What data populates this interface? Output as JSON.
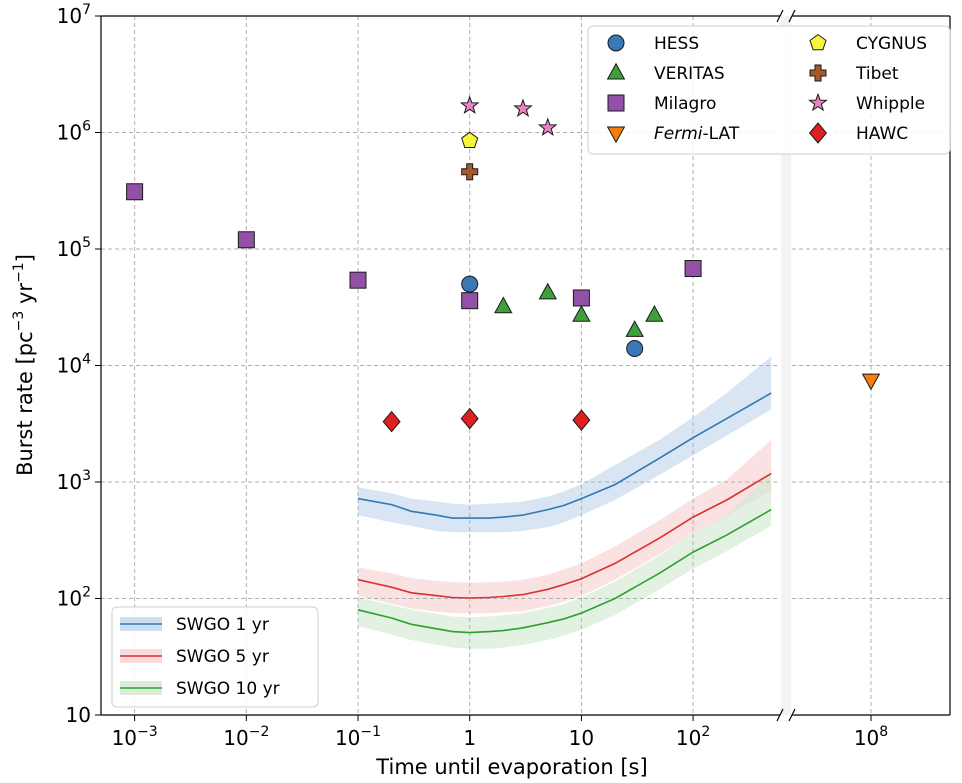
{
  "chart_data": {
    "type": "scatter",
    "title": "",
    "xlabel": "Time until evaporation [s]",
    "ylabel": "Burst rate [pc⁻³ yr⁻¹]",
    "ylim": [
      10,
      10000000
    ],
    "y_scale": "log",
    "x_scale": "log",
    "x_break": "axis break between 10^2.5 s and 10^8 s",
    "xlim_left": [
      0.0005,
      600
    ],
    "xlim_right": [
      1000000,
      10000000000
    ],
    "x_ticks": [
      {
        "value": 0.001,
        "base": "10",
        "exp": "−3"
      },
      {
        "value": 0.01,
        "base": "10",
        "exp": "−2"
      },
      {
        "value": 0.1,
        "base": "10",
        "exp": "−1"
      },
      {
        "value": 1,
        "base": "1",
        "exp": ""
      },
      {
        "value": 10,
        "base": "10",
        "exp": ""
      },
      {
        "value": 100,
        "base": "10",
        "exp": "2"
      },
      {
        "value": 100000000,
        "base": "10",
        "exp": "8"
      }
    ],
    "y_ticks": [
      {
        "value": 10,
        "base": "10",
        "exp": ""
      },
      {
        "value": 100,
        "base": "10",
        "exp": "2"
      },
      {
        "value": 1000,
        "base": "10",
        "exp": "3"
      },
      {
        "value": 10000,
        "base": "10",
        "exp": "4"
      },
      {
        "value": 100000,
        "base": "10",
        "exp": "5"
      },
      {
        "value": 1000000,
        "base": "10",
        "exp": "6"
      },
      {
        "value": 10000000,
        "base": "10",
        "exp": "7"
      }
    ],
    "grid": true,
    "legend_placement": "top-right",
    "lines_legend_placement": "bottom-left",
    "points": [
      {
        "name": "HESS",
        "marker": "circle",
        "color": "#3a78b6",
        "points": [
          [
            1,
            50000
          ],
          [
            30,
            14000
          ]
        ]
      },
      {
        "name": "VERITAS",
        "marker": "triangle-up",
        "color": "#3ea03a",
        "points": [
          [
            2,
            32000
          ],
          [
            5,
            42000
          ],
          [
            10,
            27000
          ],
          [
            30,
            20000
          ],
          [
            45,
            27000
          ]
        ]
      },
      {
        "name": "Milagro",
        "marker": "square",
        "color": "#9251a6",
        "points": [
          [
            0.001,
            310000
          ],
          [
            0.01,
            120000
          ],
          [
            0.1,
            54000
          ],
          [
            1,
            36000
          ],
          [
            10,
            38000
          ],
          [
            100,
            68000
          ]
        ]
      },
      {
        "name": "Fermi-LAT",
        "label_italic": "Fermi",
        "label_rest": "-LAT",
        "marker": "triangle-down",
        "color": "#f47d0e",
        "points": [
          [
            100000000,
            7500
          ]
        ]
      },
      {
        "name": "CYGNUS",
        "marker": "pentagon",
        "color": "#f8f43a",
        "points": [
          [
            1,
            850000
          ]
        ]
      },
      {
        "name": "Tibet",
        "marker": "plus",
        "color": "#a55a2c",
        "points": [
          [
            1,
            460000
          ]
        ]
      },
      {
        "name": "Whipple",
        "marker": "star",
        "color": "#ec82c6",
        "points": [
          [
            1,
            1700000
          ],
          [
            3,
            1600000
          ],
          [
            5,
            1100000
          ]
        ]
      },
      {
        "name": "HAWC",
        "marker": "diamond",
        "color": "#df2020",
        "points": [
          [
            0.2,
            3300
          ],
          [
            1,
            3500
          ],
          [
            10,
            3400
          ]
        ]
      }
    ],
    "series": [
      {
        "name": "SWGO 1 yr",
        "color": "#2f79b6",
        "band_color": "#c4d7ec",
        "x": [
          0.1,
          0.2,
          0.3,
          0.5,
          0.7,
          1,
          1.5,
          2,
          3,
          5,
          7,
          10,
          20,
          50,
          100,
          200,
          500
        ],
        "y": [
          720,
          640,
          560,
          520,
          490,
          490,
          490,
          500,
          520,
          580,
          630,
          720,
          950,
          1600,
          2400,
          3500,
          5800
        ],
        "band_low": [
          520,
          450,
          420,
          380,
          370,
          370,
          370,
          370,
          380,
          410,
          450,
          520,
          700,
          1150,
          1700,
          2500,
          4200
        ],
        "band_high": [
          900,
          800,
          720,
          680,
          650,
          640,
          650,
          660,
          680,
          750,
          830,
          960,
          1400,
          2300,
          3600,
          5800,
          12000
        ]
      },
      {
        "name": "SWGO 5 yr",
        "color": "#d73132",
        "band_color": "#f8d2d2",
        "x": [
          0.1,
          0.2,
          0.3,
          0.5,
          0.7,
          1,
          1.5,
          2,
          3,
          5,
          7,
          10,
          20,
          50,
          100,
          200,
          500
        ],
        "y": [
          145,
          125,
          112,
          106,
          102,
          101,
          102,
          104,
          108,
          120,
          132,
          148,
          200,
          330,
          500,
          700,
          1180
        ],
        "band_low": [
          105,
          90,
          82,
          77,
          75,
          75,
          75,
          76,
          78,
          86,
          94,
          105,
          145,
          240,
          360,
          510,
          850
        ],
        "band_high": [
          185,
          165,
          150,
          142,
          138,
          137,
          138,
          140,
          145,
          160,
          178,
          200,
          280,
          470,
          720,
          1050,
          2300
        ]
      },
      {
        "name": "SWGO 10 yr",
        "color": "#2ea02e",
        "band_color": "#d2ead2",
        "x": [
          0.1,
          0.2,
          0.3,
          0.5,
          0.7,
          1,
          1.5,
          2,
          3,
          5,
          7,
          10,
          20,
          50,
          100,
          200,
          500
        ],
        "y": [
          80,
          68,
          60,
          55,
          52,
          51,
          52,
          53,
          56,
          62,
          67,
          75,
          100,
          165,
          250,
          350,
          580
        ],
        "band_low": [
          58,
          49,
          44,
          40,
          38,
          37,
          37,
          38,
          40,
          44,
          48,
          54,
          72,
          120,
          180,
          255,
          420
        ],
        "band_high": [
          102,
          88,
          80,
          74,
          70,
          69,
          70,
          72,
          75,
          83,
          90,
          102,
          140,
          235,
          360,
          520,
          1180
        ]
      }
    ]
  }
}
